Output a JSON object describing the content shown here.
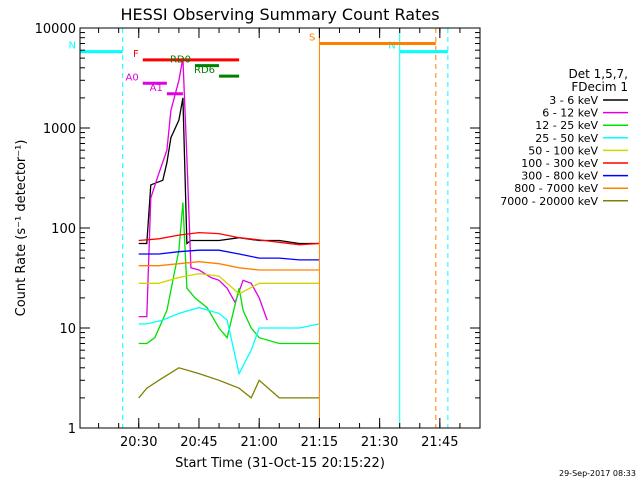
{
  "chart_data": {
    "type": "line",
    "title": "HESSI Observing Summary Count Rates",
    "xlabel": "Start Time (31-Oct-15 20:15:22)",
    "ylabel": "Count Rate (s⁻¹ detector⁻¹)",
    "yscale": "log",
    "ylim": [
      1,
      10000
    ],
    "xlim": [
      "20:15:22",
      "21:55:00"
    ],
    "x_ticks": [
      "20:30",
      "20:45",
      "21:00",
      "21:15",
      "21:30",
      "21:45"
    ],
    "y_ticks": [
      "1",
      "10",
      "100",
      "1000",
      "10000"
    ],
    "legend_title": [
      "Det 1,5,7,",
      "FDecim 1"
    ],
    "legend_position": "right",
    "timestamp": "29-Sep-2017 08:33",
    "series": [
      {
        "name": "3 - 6 keV",
        "color": "#000000",
        "x": [
          "20:30",
          "20:32",
          "20:33",
          "20:34",
          "20:36",
          "20:37",
          "20:38",
          "20:40",
          "20:41",
          "20:42",
          "20:43",
          "20:46",
          "20:50",
          "20:55",
          "21:00",
          "21:05",
          "21:10",
          "21:15"
        ],
        "y": [
          70,
          70,
          270,
          280,
          300,
          450,
          800,
          1200,
          2000,
          70,
          75,
          75,
          75,
          80,
          75,
          75,
          70,
          70
        ]
      },
      {
        "name": "6 - 12 keV",
        "color": "#e000e0",
        "x": [
          "20:30",
          "20:32",
          "20:33",
          "20:35",
          "20:37",
          "20:38",
          "20:40",
          "20:41",
          "20:42",
          "20:43",
          "20:45",
          "20:48",
          "20:50",
          "20:52",
          "20:54",
          "20:56",
          "20:58",
          "21:00",
          "21:02"
        ],
        "y": [
          13,
          13,
          200,
          350,
          600,
          1500,
          3000,
          5000,
          500,
          40,
          38,
          32,
          30,
          25,
          18,
          30,
          28,
          20,
          12
        ]
      },
      {
        "name": "12 - 25 keV",
        "color": "#00e000",
        "x": [
          "20:30",
          "20:32",
          "20:34",
          "20:37",
          "20:40",
          "20:41",
          "20:42",
          "20:44",
          "20:47",
          "20:50",
          "20:52",
          "20:55",
          "20:56",
          "20:58",
          "21:00",
          "21:05",
          "21:10",
          "21:15"
        ],
        "y": [
          7,
          7,
          8,
          15,
          60,
          180,
          25,
          20,
          16,
          10,
          8,
          25,
          15,
          10,
          8,
          7,
          7,
          7
        ]
      },
      {
        "name": "25 - 50 keV",
        "color": "#00ffff",
        "x": [
          "20:30",
          "20:32",
          "20:36",
          "20:40",
          "20:45",
          "20:50",
          "20:52",
          "20:55",
          "20:58",
          "21:00",
          "21:05",
          "21:10",
          "21:15"
        ],
        "y": [
          11,
          11,
          12,
          14,
          16,
          14,
          12,
          3.5,
          6,
          10,
          10,
          10,
          11
        ]
      },
      {
        "name": "50 - 100 keV",
        "color": "#d4d400",
        "x": [
          "20:30",
          "20:35",
          "20:40",
          "20:45",
          "20:50",
          "20:55",
          "21:00",
          "21:05",
          "21:10",
          "21:15"
        ],
        "y": [
          28,
          28,
          32,
          35,
          33,
          22,
          28,
          28,
          28,
          28
        ]
      },
      {
        "name": "100 - 300 keV",
        "color": "#ff0000",
        "x": [
          "20:30",
          "20:35",
          "20:40",
          "20:45",
          "20:50",
          "20:55",
          "21:00",
          "21:05",
          "21:10",
          "21:15"
        ],
        "y": [
          75,
          78,
          85,
          90,
          88,
          80,
          76,
          72,
          68,
          70
        ]
      },
      {
        "name": "300 - 800 keV",
        "color": "#0000ff",
        "x": [
          "20:30",
          "20:35",
          "20:40",
          "20:45",
          "20:50",
          "20:55",
          "21:00",
          "21:05",
          "21:10",
          "21:15"
        ],
        "y": [
          55,
          55,
          58,
          60,
          60,
          55,
          50,
          50,
          48,
          48
        ]
      },
      {
        "name": "800 - 7000 keV",
        "color": "#ff8000",
        "x": [
          "20:30",
          "20:35",
          "20:40",
          "20:45",
          "20:50",
          "20:55",
          "21:00",
          "21:05",
          "21:10",
          "21:15"
        ],
        "y": [
          42,
          42,
          44,
          46,
          44,
          40,
          38,
          38,
          38,
          38
        ]
      },
      {
        "name": "7000 - 20000 keV",
        "color": "#808000",
        "x": [
          "20:30",
          "20:32",
          "20:35",
          "20:40",
          "20:45",
          "20:50",
          "20:55",
          "20:58",
          "21:00",
          "21:05",
          "21:10",
          "21:15"
        ],
        "y": [
          2,
          2.5,
          3,
          4,
          3.5,
          3,
          2.5,
          2,
          3,
          2,
          2,
          2
        ]
      }
    ],
    "flags": [
      {
        "label": "N",
        "color": "#00ffff",
        "x": [
          "20:15:22",
          "20:26"
        ],
        "level": 5800
      },
      {
        "label": "N",
        "color": "#00ffff",
        "x": [
          "21:35",
          "21:47"
        ],
        "level": 5800
      },
      {
        "label": "F",
        "color": "#ff0000",
        "x": [
          "20:31",
          "20:55"
        ],
        "level": 4800
      },
      {
        "label": "S",
        "color": "#ff8000",
        "x": [
          "21:15",
          "21:44"
        ],
        "level": 7000
      },
      {
        "label": "RD0",
        "color": "#008000",
        "x": [
          "20:44",
          "20:50"
        ],
        "level": 4200
      },
      {
        "label": "RD6",
        "color": "#008000",
        "x": [
          "20:50",
          "20:55"
        ],
        "level": 3300
      },
      {
        "label": "A0",
        "color": "#e000e0",
        "x": [
          "20:31",
          "20:37"
        ],
        "level": 2800
      },
      {
        "label": "A1",
        "color": "#e000e0",
        "x": [
          "20:37",
          "20:41"
        ],
        "level": 2200
      }
    ],
    "vertical_markers": [
      {
        "x": "20:15:22",
        "color": "#00ffff",
        "style": "solid"
      },
      {
        "x": "20:26",
        "color": "#00ffff",
        "style": "dashed"
      },
      {
        "x": "21:15",
        "color": "#ff8000",
        "style": "solid"
      },
      {
        "x": "21:35",
        "color": "#00ffff",
        "style": "solid"
      },
      {
        "x": "21:44",
        "color": "#ff8000",
        "style": "dashed"
      },
      {
        "x": "21:47",
        "color": "#00ffff",
        "style": "dashed"
      }
    ]
  }
}
